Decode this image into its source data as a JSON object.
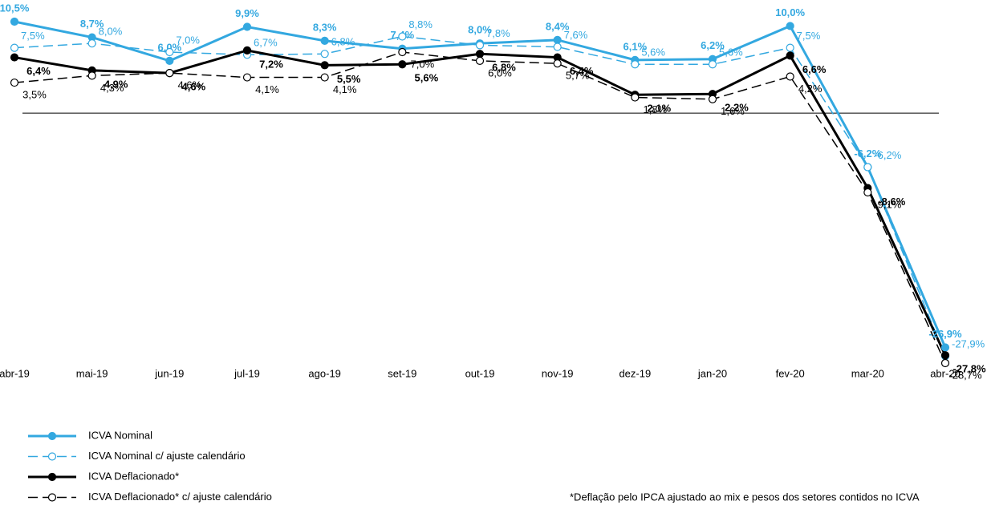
{
  "chart_data": {
    "type": "line",
    "categories": [
      "abr-19",
      "mai-19",
      "jun-19",
      "jul-19",
      "ago-19",
      "set-19",
      "out-19",
      "nov-19",
      "dez-19",
      "jan-20",
      "fev-20",
      "mar-20",
      "abr-20"
    ],
    "series": [
      {
        "name": "ICVA Nominal",
        "color": "#33a8e0",
        "style": "solid",
        "marker": "filled",
        "values": [
          10.5,
          8.7,
          6.0,
          9.9,
          8.3,
          7.4,
          8.0,
          8.4,
          6.1,
          6.2,
          10.0,
          -6.2,
          -26.9
        ],
        "value_labels": [
          "10,5%",
          "8,7%",
          "6,0%",
          "9,9%",
          "8,3%",
          "7,4%",
          "8,0%",
          "8,4%",
          "6,1%",
          "6,2%",
          "10,0%",
          "-6,2%",
          "-26,9%"
        ]
      },
      {
        "name": "ICVA Nominal c/ ajuste calendário",
        "color": "#33a8e0",
        "style": "dashed",
        "marker": "open",
        "values": [
          7.5,
          8.0,
          7.0,
          6.7,
          6.8,
          8.8,
          7.8,
          7.6,
          5.6,
          5.6,
          7.5,
          -6.2,
          -27.9
        ],
        "value_labels": [
          "7,5%",
          "8,0%",
          "7,0%",
          "6,7%",
          "6,8%",
          "8,8%",
          "7,8%",
          "7,6%",
          "5,6%",
          "5,6%",
          "7,5%",
          "-6,2%",
          "-27,9%"
        ]
      },
      {
        "name": "ICVA Deflacionado*",
        "color": "#000000",
        "style": "solid",
        "marker": "filled",
        "values": [
          6.4,
          4.9,
          4.6,
          7.2,
          5.5,
          5.6,
          6.8,
          6.4,
          2.1,
          2.2,
          6.6,
          -8.6,
          -27.8
        ],
        "value_labels": [
          "6,4%",
          "4,9%",
          "4,6%",
          "7,2%",
          "5,5%",
          "5,6%",
          "6,8%",
          "6,4%",
          "2,1%",
          "2,2%",
          "6,6%",
          "-8,6%",
          "-27,8%"
        ]
      },
      {
        "name": "ICVA Deflacionado*  c/ ajuste calendário",
        "color": "#000000",
        "style": "dashed",
        "marker": "open",
        "values": [
          3.5,
          4.3,
          4.6,
          4.1,
          4.1,
          7.0,
          6.0,
          5.7,
          1.8,
          1.6,
          4.2,
          -9.1,
          -28.7
        ],
        "value_labels": [
          "3,5%",
          "4,3%",
          "4,6%",
          "4,1%",
          "4,1%",
          "7,0%",
          "6,0%",
          "5,7%",
          "1,8%",
          "1,6%",
          "4,2%",
          "-9,1%",
          "-28,7%"
        ]
      }
    ],
    "footnote": "*Deflação pelo IPCA ajustado ao mix e pesos dos setores contidos no ICVA"
  }
}
